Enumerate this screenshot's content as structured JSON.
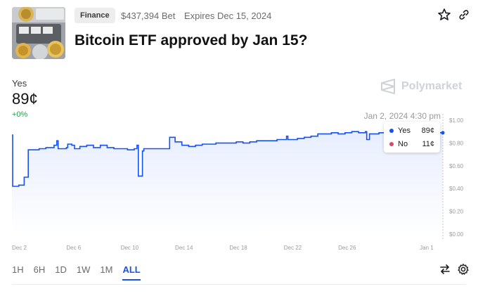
{
  "header": {
    "category": "Finance",
    "volume": "$437,394 Bet",
    "expires": "Expires Dec 15, 2024",
    "title": "Bitcoin ETF approved by Jan 15?"
  },
  "summary": {
    "outcome": "Yes",
    "price": "89¢",
    "change": "+0%"
  },
  "brand": {
    "name": "Polymarket"
  },
  "tooltip": {
    "timestamp": "Jan 2, 2024 4:30 pm",
    "rows": [
      {
        "label": "Yes",
        "value": "89¢",
        "color": "#1652f0"
      },
      {
        "label": "No",
        "value": "11¢",
        "color": "#d94a6a"
      }
    ]
  },
  "ranges": [
    {
      "label": "1H",
      "active": false
    },
    {
      "label": "6H",
      "active": false
    },
    {
      "label": "1D",
      "active": false
    },
    {
      "label": "1W",
      "active": false
    },
    {
      "label": "1M",
      "active": false
    },
    {
      "label": "ALL",
      "active": true
    }
  ],
  "icons": {
    "star": "star-icon",
    "link": "link-icon",
    "swap": "swap-arrows-icon",
    "settings": "gear-icon",
    "logo": "polymarket-logo-icon"
  },
  "colors": {
    "accent": "#1652f0",
    "positive": "#2e9b4f",
    "no": "#d94a6a"
  },
  "chart_data": {
    "type": "line",
    "x_ticks": [
      "Dec 2",
      "Dec 6",
      "Dec 10",
      "Dec 14",
      "Dec 18",
      "Dec 22",
      "Dec 26",
      "Jan 1"
    ],
    "y_ticks": [
      "$1.00",
      "$0.80",
      "$0.60",
      "$0.40",
      "$0.20",
      "$0.00"
    ],
    "ylim": [
      0,
      1.0
    ],
    "xlim_days": [
      0,
      31.7
    ],
    "grid": false,
    "series": [
      {
        "name": "Yes",
        "x": [
          0,
          0.05,
          0.1,
          0.5,
          0.8,
          0.9,
          1.2,
          2.0,
          2.5,
          3.0,
          3.1,
          3.3,
          3.4,
          4.0,
          4.1,
          4.4,
          4.6,
          5.0,
          5.5,
          6.0,
          6.5,
          7.0,
          7.5,
          8.0,
          8.5,
          9.0,
          9.2,
          9.3,
          9.6,
          9.7,
          9.9,
          10.0,
          11.0,
          11.5,
          11.6,
          12.0,
          12.5,
          13.0,
          13.5,
          14.0,
          14.5,
          15.0,
          15.5,
          16.0,
          16.5,
          17.0,
          17.5,
          18.0,
          18.5,
          19.0,
          19.5,
          20.0,
          20.2,
          20.3,
          21.0,
          21.5,
          22.0,
          22.5,
          23.0,
          23.5,
          24.0,
          24.5,
          25.0,
          25.5,
          26.0,
          26.1,
          26.3,
          27.0,
          27.5,
          28.0,
          28.5,
          29.0,
          29.5,
          30.0,
          30.4,
          31.7
        ],
        "values": [
          0.87,
          0.42,
          0.42,
          0.43,
          0.43,
          0.5,
          0.74,
          0.75,
          0.76,
          0.76,
          0.78,
          0.82,
          0.75,
          0.76,
          0.79,
          0.78,
          0.75,
          0.77,
          0.78,
          0.76,
          0.78,
          0.76,
          0.75,
          0.75,
          0.74,
          0.75,
          0.78,
          0.51,
          0.73,
          0.75,
          0.75,
          0.75,
          0.75,
          0.75,
          0.85,
          0.81,
          0.78,
          0.77,
          0.78,
          0.79,
          0.79,
          0.8,
          0.8,
          0.8,
          0.81,
          0.8,
          0.81,
          0.82,
          0.82,
          0.82,
          0.83,
          0.83,
          0.86,
          0.83,
          0.84,
          0.85,
          0.86,
          0.88,
          0.88,
          0.89,
          0.88,
          0.89,
          0.9,
          0.89,
          0.9,
          0.83,
          0.88,
          0.89,
          0.89,
          0.88,
          0.87,
          0.88,
          0.88,
          0.89,
          0.89,
          0.89
        ]
      }
    ]
  }
}
